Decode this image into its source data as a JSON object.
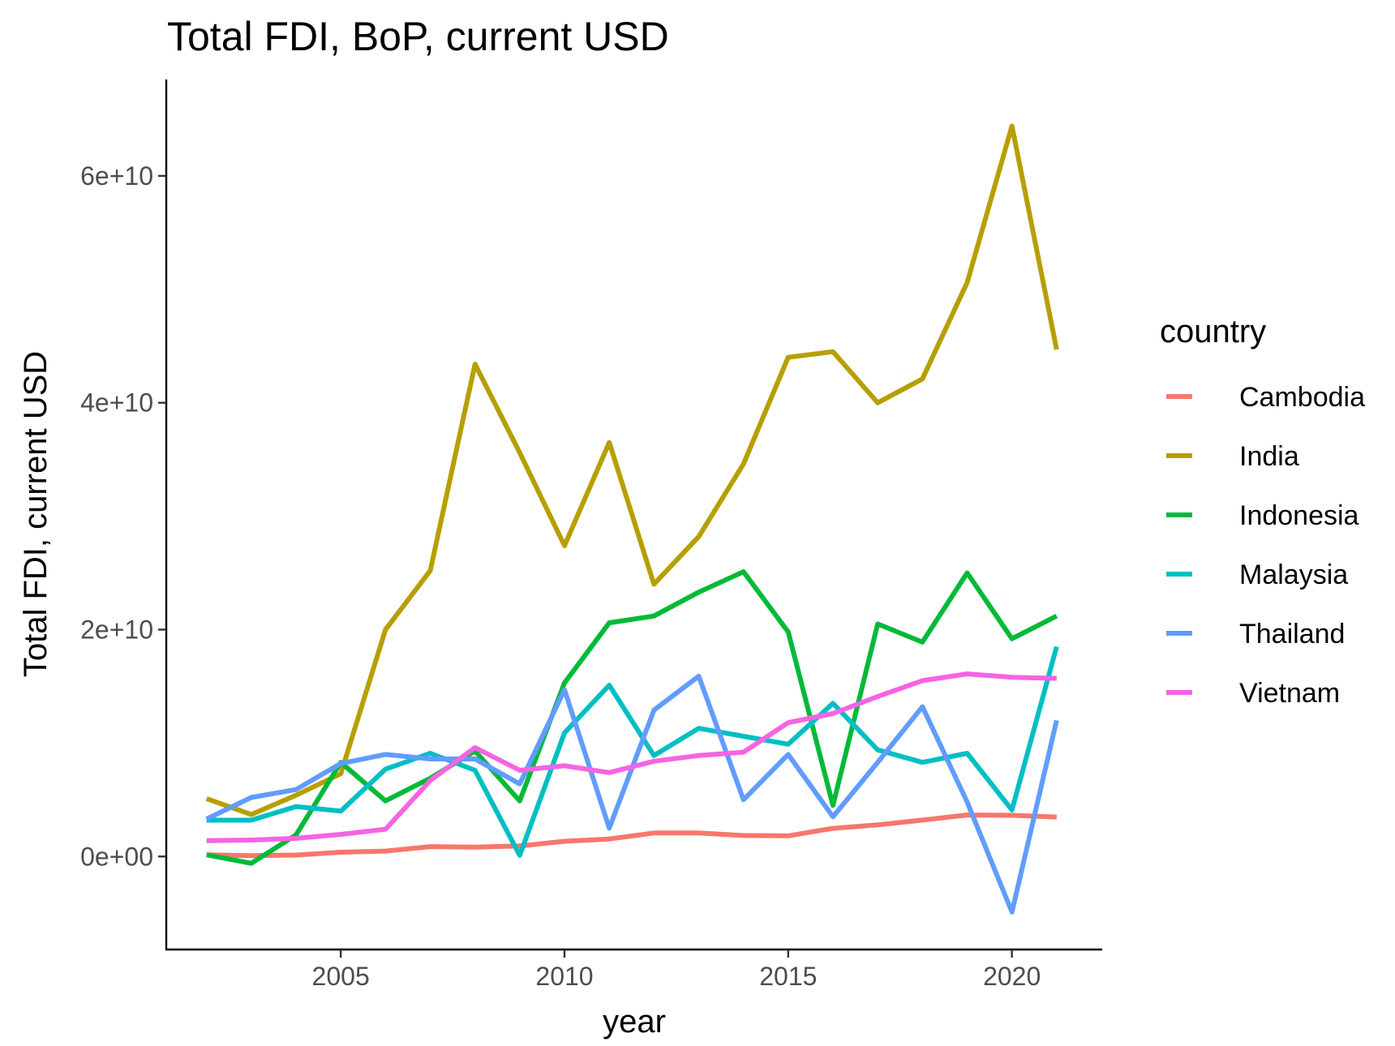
{
  "chart_data": {
    "type": "line",
    "title": "Total FDI, BoP, current USD",
    "xlabel": "year",
    "ylabel": "Total FDI, current USD",
    "x": [
      2002,
      2003,
      2004,
      2005,
      2006,
      2007,
      2008,
      2009,
      2010,
      2011,
      2012,
      2013,
      2014,
      2015,
      2016,
      2017,
      2018,
      2019,
      2020,
      2021
    ],
    "xlim": [
      2001.1,
      2022.0
    ],
    "ylim": [
      -8200000000.0,
      68500000000.0
    ],
    "x_ticks": [
      2005,
      2010,
      2015,
      2020
    ],
    "x_tick_labels": [
      "2005",
      "2010",
      "2015",
      "2020"
    ],
    "y_ticks": [
      0,
      20000000000,
      40000000000,
      60000000000
    ],
    "y_tick_labels": [
      "0e+00",
      "2e+10",
      "4e+10",
      "6e+10"
    ],
    "grid": false,
    "legend": {
      "title": "country",
      "position": "right"
    },
    "series": [
      {
        "name": "Cambodia",
        "color": "#F8766D",
        "values": [
          150000000.0,
          80000000.0,
          130000000.0,
          380000000.0,
          480000000.0,
          870000000.0,
          820000000.0,
          930000000.0,
          1340000000.0,
          1540000000.0,
          2070000000.0,
          2070000000.0,
          1850000000.0,
          1820000000.0,
          2480000000.0,
          2790000000.0,
          3210000000.0,
          3660000000.0,
          3630000000.0,
          3480000000.0
        ]
      },
      {
        "name": "India",
        "color": "#B79F00",
        "values": [
          5100000000.0,
          3700000000.0,
          5400000000.0,
          7300000000.0,
          20000000000.0,
          25200000000.0,
          43400000000.0,
          35600000000.0,
          27400000000.0,
          36500000000.0,
          24000000000.0,
          28200000000.0,
          34600000000.0,
          44000000000.0,
          44500000000.0,
          40000000000.0,
          42100000000.0,
          50600000000.0,
          64400000000.0,
          44700000000.0
        ]
      },
      {
        "name": "Indonesia",
        "color": "#00BA38",
        "values": [
          150000000.0,
          -600000000.0,
          1900000000.0,
          8300000000.0,
          4900000000.0,
          6900000000.0,
          9300000000.0,
          4900000000.0,
          15300000000.0,
          20600000000.0,
          21200000000.0,
          23300000000.0,
          25100000000.0,
          19800000000.0,
          4500000000.0,
          20500000000.0,
          18900000000.0,
          25000000000.0,
          19200000000.0,
          21200000000.0
        ]
      },
      {
        "name": "Malaysia",
        "color": "#00BFC4",
        "values": [
          3200000000.0,
          3200000000.0,
          4400000000.0,
          4000000000.0,
          7700000000.0,
          9100000000.0,
          7600000000.0,
          100000000.0,
          10900000000.0,
          15100000000.0,
          8900000000.0,
          11300000000.0,
          10600000000.0,
          9900000000.0,
          13500000000.0,
          9400000000.0,
          8300000000.0,
          9100000000.0,
          4100000000.0,
          18500000000.0
        ]
      },
      {
        "name": "Thailand",
        "color": "#619CFF",
        "values": [
          3300000000.0,
          5200000000.0,
          5900000000.0,
          8200000000.0,
          9000000000.0,
          8600000000.0,
          8600000000.0,
          6400000000.0,
          14700000000.0,
          2500000000.0,
          12900000000.0,
          15900000000.0,
          5000000000.0,
          9000000000.0,
          3500000000.0,
          8300000000.0,
          13200000000.0,
          4800000000.0,
          -4900000000.0,
          12000000000.0
        ]
      },
      {
        "name": "Vietnam",
        "color": "#F564E3",
        "values": [
          1400000000.0,
          1450000000.0,
          1600000000.0,
          1950000000.0,
          2400000000.0,
          6700000000.0,
          9600000000.0,
          7600000000.0,
          8000000000.0,
          7400000000.0,
          8400000000.0,
          8900000000.0,
          9200000000.0,
          11800000000.0,
          12600000000.0,
          14100000000.0,
          15500000000.0,
          16100000000.0,
          15800000000.0,
          15700000000.0
        ]
      }
    ]
  }
}
